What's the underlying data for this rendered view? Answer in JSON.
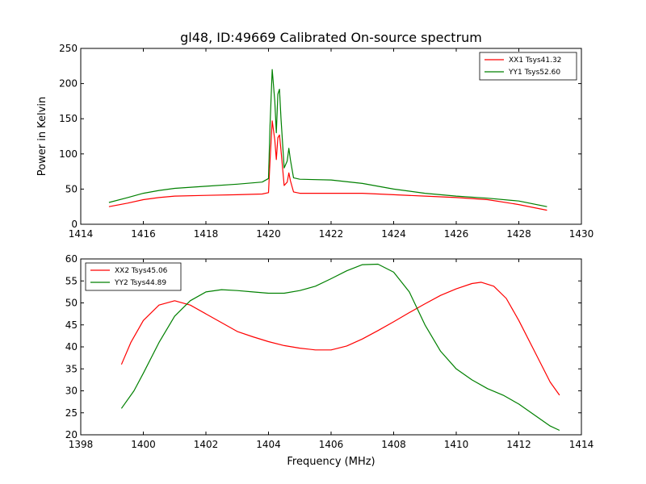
{
  "chart_data": [
    {
      "type": "line",
      "title": "gl48, ID:49669 Calibrated On-source spectrum",
      "xlabel": "",
      "ylabel": "Power in Kelvin",
      "xlim": [
        1414,
        1430
      ],
      "ylim": [
        0,
        250
      ],
      "xticks": [
        "1414",
        "1416",
        "1418",
        "1420",
        "1422",
        "1424",
        "1426",
        "1428",
        "1430"
      ],
      "yticks": [
        "0",
        "50",
        "100",
        "150",
        "200",
        "250"
      ],
      "grid": false,
      "legend_position": "top-right",
      "series": [
        {
          "name": "XX1 Tsys41.32",
          "color": "#ff0000",
          "x": [
            1414.9,
            1415.5,
            1416.0,
            1416.5,
            1417.0,
            1418.0,
            1419.0,
            1419.8,
            1420.0,
            1420.05,
            1420.12,
            1420.2,
            1420.25,
            1420.3,
            1420.35,
            1420.4,
            1420.5,
            1420.6,
            1420.65,
            1420.7,
            1420.8,
            1421.0,
            1422.0,
            1423.0,
            1424.0,
            1425.0,
            1426.0,
            1427.0,
            1428.0,
            1428.9
          ],
          "y": [
            25,
            30,
            35,
            38,
            40,
            41,
            42,
            43,
            45,
            90,
            147,
            120,
            92,
            123,
            127,
            105,
            55,
            60,
            73,
            62,
            46,
            44,
            44,
            44,
            42,
            40,
            38,
            35,
            28,
            20
          ]
        },
        {
          "name": "YY1 Tsys52.60",
          "color": "#008000",
          "x": [
            1414.9,
            1415.5,
            1416.0,
            1416.5,
            1417.0,
            1418.0,
            1419.0,
            1419.8,
            1420.0,
            1420.05,
            1420.12,
            1420.2,
            1420.25,
            1420.3,
            1420.35,
            1420.4,
            1420.5,
            1420.6,
            1420.65,
            1420.7,
            1420.8,
            1421.0,
            1422.0,
            1423.0,
            1424.0,
            1425.0,
            1426.0,
            1427.0,
            1428.0,
            1428.9
          ],
          "y": [
            31,
            38,
            44,
            48,
            51,
            54,
            57,
            60,
            65,
            140,
            220,
            175,
            130,
            185,
            192,
            150,
            80,
            90,
            108,
            92,
            66,
            64,
            63,
            58,
            50,
            44,
            40,
            37,
            33,
            25
          ]
        }
      ]
    },
    {
      "type": "line",
      "title": "",
      "xlabel": "Frequency (MHz)",
      "ylabel": "",
      "xlim": [
        1398,
        1414
      ],
      "ylim": [
        20,
        60
      ],
      "xticks": [
        "1398",
        "1400",
        "1402",
        "1404",
        "1406",
        "1408",
        "1410",
        "1412",
        "1414"
      ],
      "yticks": [
        "20",
        "25",
        "30",
        "35",
        "40",
        "45",
        "50",
        "55",
        "60"
      ],
      "grid": false,
      "legend_position": "top-left",
      "series": [
        {
          "name": "XX2 Tsys45.06",
          "color": "#ff0000",
          "x": [
            1399.3,
            1399.6,
            1400.0,
            1400.5,
            1401.0,
            1401.5,
            1402.0,
            1402.5,
            1403.0,
            1403.5,
            1404.0,
            1404.5,
            1405.0,
            1405.5,
            1406.0,
            1406.5,
            1407.0,
            1407.5,
            1408.0,
            1408.5,
            1409.0,
            1409.5,
            1410.0,
            1410.5,
            1410.8,
            1411.2,
            1411.6,
            1412.0,
            1412.5,
            1413.0,
            1413.3
          ],
          "y": [
            36,
            41,
            46,
            49.5,
            50.5,
            49.5,
            47.5,
            45.5,
            43.5,
            42.3,
            41.2,
            40.3,
            39.7,
            39.3,
            39.3,
            40.2,
            41.8,
            43.7,
            45.7,
            47.8,
            49.8,
            51.7,
            53.2,
            54.4,
            54.7,
            53.8,
            51,
            46,
            39,
            32,
            29
          ]
        },
        {
          "name": "YY2 Tsys44.89",
          "color": "#008000",
          "x": [
            1399.3,
            1399.7,
            1400.0,
            1400.5,
            1401.0,
            1401.5,
            1402.0,
            1402.5,
            1403.0,
            1403.5,
            1404.0,
            1404.5,
            1405.0,
            1405.5,
            1406.0,
            1406.5,
            1407.0,
            1407.5,
            1408.0,
            1408.5,
            1409.0,
            1409.5,
            1410.0,
            1410.5,
            1411.0,
            1411.5,
            1412.0,
            1412.5,
            1413.0,
            1413.3
          ],
          "y": [
            26,
            30,
            34,
            41,
            47,
            50.5,
            52.5,
            53,
            52.8,
            52.5,
            52.2,
            52.2,
            52.8,
            53.8,
            55.5,
            57.3,
            58.7,
            58.8,
            57,
            52.5,
            45,
            39,
            35,
            32.5,
            30.5,
            29,
            27,
            24.5,
            22,
            21
          ]
        }
      ]
    }
  ]
}
